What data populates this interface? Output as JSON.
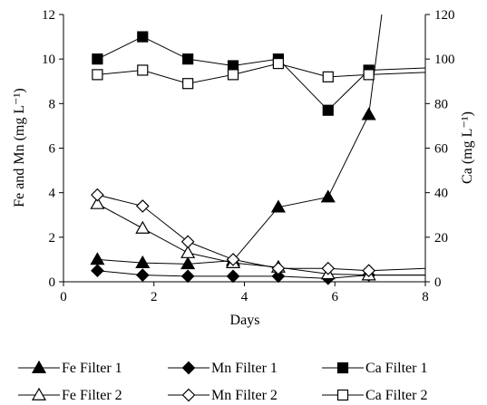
{
  "chart_data": {
    "type": "line",
    "title": "",
    "xlabel": "Days",
    "ylabel": "Fe and Mn (mg L⁻¹)",
    "y2label": "Ca (mg L⁻¹)",
    "xlim": [
      0,
      8
    ],
    "ylim": [
      0,
      12
    ],
    "y2lim": [
      0,
      120
    ],
    "xticks": [
      "0",
      "2",
      "4",
      "6",
      "8"
    ],
    "yticks": [
      "0",
      "2",
      "4",
      "6",
      "8",
      "10",
      "12"
    ],
    "y2ticks": [
      "0",
      "20",
      "40",
      "60",
      "80",
      "100",
      "120"
    ],
    "grid": false,
    "legend_position": "bottom",
    "series": [
      {
        "name": "Fe Filter 1",
        "axis": "left",
        "marker": "triangle",
        "fill": "filled",
        "x": [
          0.75,
          1.75,
          2.75,
          3.75,
          4.75,
          5.85,
          6.75,
          7.1
        ],
        "y": [
          1.0,
          0.85,
          0.8,
          0.95,
          3.35,
          3.8,
          7.5,
          13.0
        ],
        "marker_count": 7
      },
      {
        "name": "Mn Filter 1",
        "axis": "left",
        "marker": "diamond",
        "fill": "filled",
        "x": [
          0.75,
          1.75,
          2.75,
          3.75,
          4.75,
          5.85,
          6.75,
          8.0
        ],
        "y": [
          0.5,
          0.3,
          0.25,
          0.25,
          0.25,
          0.15,
          0.3,
          0.3
        ],
        "marker_count": 7
      },
      {
        "name": "Ca Filter 1",
        "axis": "right",
        "marker": "square",
        "fill": "filled",
        "x": [
          0.75,
          1.75,
          2.75,
          3.75,
          4.75,
          5.85,
          6.75,
          8.0
        ],
        "y": [
          100,
          110,
          100,
          97,
          100,
          77,
          95,
          96
        ],
        "marker_count": 7
      },
      {
        "name": "Fe Filter 2",
        "axis": "left",
        "marker": "triangle",
        "fill": "open",
        "x": [
          0.75,
          1.75,
          2.75,
          3.75,
          4.75,
          5.85,
          6.75,
          8.0
        ],
        "y": [
          3.5,
          2.4,
          1.3,
          0.85,
          0.65,
          0.35,
          0.3,
          0.3
        ],
        "marker_count": 7
      },
      {
        "name": "Mn Filter 2",
        "axis": "left",
        "marker": "diamond",
        "fill": "open",
        "x": [
          0.75,
          1.75,
          2.75,
          3.75,
          4.75,
          5.85,
          6.75,
          8.0
        ],
        "y": [
          3.9,
          3.4,
          1.8,
          1.0,
          0.6,
          0.6,
          0.5,
          0.6
        ],
        "marker_count": 7
      },
      {
        "name": "Ca Filter 2",
        "axis": "right",
        "marker": "square",
        "fill": "open",
        "x": [
          0.75,
          1.75,
          2.75,
          3.75,
          4.75,
          5.85,
          6.75,
          8.0
        ],
        "y": [
          93,
          95,
          89,
          93,
          98,
          92,
          93,
          94
        ],
        "marker_count": 7
      }
    ]
  }
}
